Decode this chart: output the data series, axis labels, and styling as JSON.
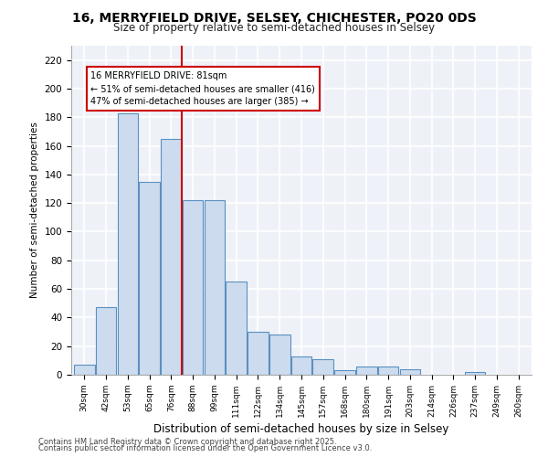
{
  "title1": "16, MERRYFIELD DRIVE, SELSEY, CHICHESTER, PO20 0DS",
  "title2": "Size of property relative to semi-detached houses in Selsey",
  "xlabel": "Distribution of semi-detached houses by size in Selsey",
  "ylabel": "Number of semi-detached properties",
  "categories": [
    "30sqm",
    "42sqm",
    "53sqm",
    "65sqm",
    "76sqm",
    "88sqm",
    "99sqm",
    "111sqm",
    "122sqm",
    "134sqm",
    "145sqm",
    "157sqm",
    "168sqm",
    "180sqm",
    "191sqm",
    "203sqm",
    "214sqm",
    "226sqm",
    "237sqm",
    "249sqm",
    "260sqm"
  ],
  "values": [
    7,
    47,
    183,
    135,
    165,
    122,
    122,
    65,
    30,
    28,
    13,
    11,
    3,
    6,
    6,
    4,
    0,
    0,
    2,
    0,
    0
  ],
  "bar_color": "#ccdcee",
  "bar_edge_color": "#5a90c0",
  "annotation_line1": "16 MERRYFIELD DRIVE: 81sqm",
  "annotation_line2": "← 51% of semi-detached houses are smaller (416)",
  "annotation_line3": "47% of semi-detached houses are larger (385) →",
  "vline_color": "#cc0000",
  "background_color": "#eef2f8",
  "grid_color": "#ffffff",
  "footer1": "Contains HM Land Registry data © Crown copyright and database right 2025.",
  "footer2": "Contains public sector information licensed under the Open Government Licence v3.0.",
  "ylim": [
    0,
    230
  ],
  "yticks": [
    0,
    20,
    40,
    60,
    80,
    100,
    120,
    140,
    160,
    180,
    200,
    220
  ],
  "vline_x": 4.5
}
